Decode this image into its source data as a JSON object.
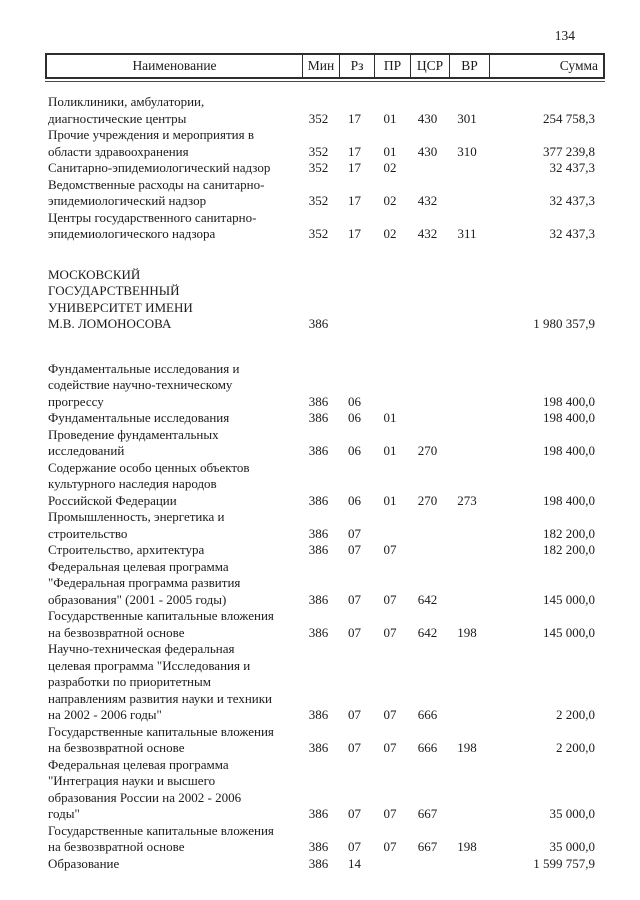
{
  "page": {
    "number": "134"
  },
  "table": {
    "headers": [
      "Наименование",
      "Мин",
      "Рз",
      "ПР",
      "ЦСР",
      "ВР",
      "Сумма"
    ],
    "rows": [
      {
        "name": "Поликлиники, амбулатории,\nдиагностические центры",
        "min": "352",
        "rz": "17",
        "pr": "01",
        "csr": "430",
        "vr": "301",
        "sum": "254 758,3"
      },
      {
        "name": "Прочие учреждения и мероприятия в\nобласти здравоохранения",
        "min": "352",
        "rz": "17",
        "pr": "01",
        "csr": "430",
        "vr": "310",
        "sum": "377 239,8"
      },
      {
        "name": "Санитарно-эпидемиологический надзор",
        "min": "352",
        "rz": "17",
        "pr": "02",
        "csr": "",
        "vr": "",
        "sum": "32 437,3"
      },
      {
        "name": "Ведомственные расходы на санитарно-\nэпидемиологический надзор",
        "min": "352",
        "rz": "17",
        "pr": "02",
        "csr": "432",
        "vr": "",
        "sum": "32 437,3"
      },
      {
        "name": "Центры государственного санитарно-\nэпидемиологического надзора",
        "min": "352",
        "rz": "17",
        "pr": "02",
        "csr": "432",
        "vr": "311",
        "sum": "32 437,3"
      },
      {
        "gap": "md",
        "name": "МОСКОВСКИЙ\nГОСУДАРСТВЕННЫЙ\nУНИВЕРСИТЕТ ИМЕНИ\nМ.В. ЛОМОНОСОВА",
        "min": "386",
        "rz": "",
        "pr": "",
        "csr": "",
        "vr": "",
        "sum": "1 980 357,9"
      },
      {
        "gap": "lg",
        "name": "Фундаментальные исследования и\nсодействие научно-техническому\nпрогрессу",
        "min": "386",
        "rz": "06",
        "pr": "",
        "csr": "",
        "vr": "",
        "sum": "198 400,0"
      },
      {
        "name": "Фундаментальные исследования",
        "min": "386",
        "rz": "06",
        "pr": "01",
        "csr": "",
        "vr": "",
        "sum": "198 400,0"
      },
      {
        "name": "Проведение фундаментальных\nисследований",
        "min": "386",
        "rz": "06",
        "pr": "01",
        "csr": "270",
        "vr": "",
        "sum": "198 400,0"
      },
      {
        "name": "Содержание особо ценных объектов\nкультурного наследия народов\nРоссийской Федерации",
        "min": "386",
        "rz": "06",
        "pr": "01",
        "csr": "270",
        "vr": "273",
        "sum": "198 400,0"
      },
      {
        "name": "Промышленность, энергетика и\nстроительство",
        "min": "386",
        "rz": "07",
        "pr": "",
        "csr": "",
        "vr": "",
        "sum": "182 200,0"
      },
      {
        "name": "Строительство, архитектура",
        "min": "386",
        "rz": "07",
        "pr": "07",
        "csr": "",
        "vr": "",
        "sum": "182 200,0"
      },
      {
        "name": "Федеральная целевая программа\n\"Федеральная программа развития\nобразования\" (2001 - 2005 годы)",
        "min": "386",
        "rz": "07",
        "pr": "07",
        "csr": "642",
        "vr": "",
        "sum": "145 000,0"
      },
      {
        "name": "Государственные капитальные вложения\nна безвозвратной основе",
        "min": "386",
        "rz": "07",
        "pr": "07",
        "csr": "642",
        "vr": "198",
        "sum": "145 000,0"
      },
      {
        "name": "Научно-техническая федеральная\nцелевая программа \"Исследования и\nразработки по приоритетным\nнаправлениям развития науки и техники\nна 2002 - 2006 годы\"",
        "min": "386",
        "rz": "07",
        "pr": "07",
        "csr": "666",
        "vr": "",
        "sum": "2 200,0"
      },
      {
        "name": "Государственные капитальные вложения\nна безвозвратной основе",
        "min": "386",
        "rz": "07",
        "pr": "07",
        "csr": "666",
        "vr": "198",
        "sum": "2 200,0"
      },
      {
        "name": "Федеральная целевая программа\n\"Интеграция науки и высшего\nобразования России на 2002 - 2006\nгоды\"",
        "min": "386",
        "rz": "07",
        "pr": "07",
        "csr": "667",
        "vr": "",
        "sum": "35 000,0"
      },
      {
        "name": "Государственные капитальные вложения\nна безвозвратной основе",
        "min": "386",
        "rz": "07",
        "pr": "07",
        "csr": "667",
        "vr": "198",
        "sum": "35 000,0"
      },
      {
        "name": "Образование",
        "min": "386",
        "rz": "14",
        "pr": "",
        "csr": "",
        "vr": "",
        "sum": "1 599 757,9"
      }
    ]
  }
}
